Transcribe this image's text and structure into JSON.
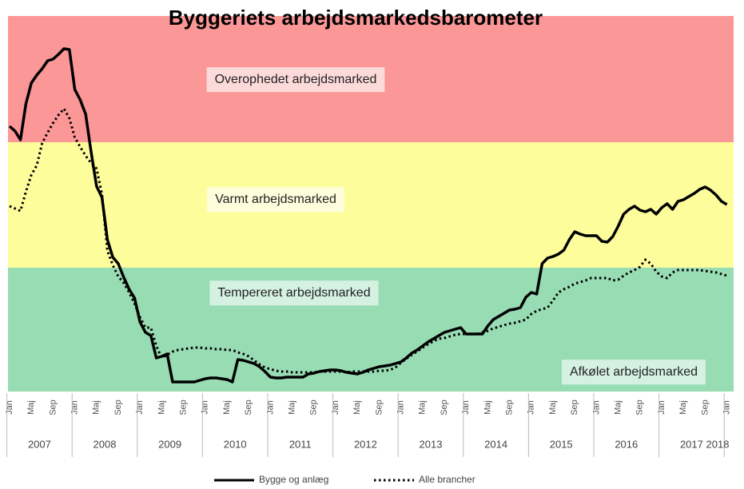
{
  "chart_data": {
    "type": "line",
    "title": "Byggeriets arbejdsmarkedsbarometer",
    "categories": [
      "Jan",
      null,
      null,
      null,
      "Maj",
      null,
      null,
      null,
      "Sep",
      null,
      null,
      null,
      "Jan",
      null,
      null,
      null,
      "Maj",
      null,
      null,
      null,
      "Sep",
      null,
      null,
      null,
      "Jan",
      null,
      null,
      null,
      "Maj",
      null,
      null,
      null,
      "Sep",
      null,
      null,
      null,
      "Jan",
      null,
      null,
      null,
      "Maj",
      null,
      null,
      null,
      "Sep",
      null,
      null,
      null,
      "Jan",
      null,
      null,
      null,
      "Maj",
      null,
      null,
      null,
      "Sep",
      null,
      null,
      null,
      "Jan",
      null,
      null,
      null,
      "Maj",
      null,
      null,
      null,
      "Sep",
      null,
      null,
      null,
      "Jan",
      null,
      null,
      null,
      "Maj",
      null,
      null,
      null,
      "Sep",
      null,
      null,
      null,
      "Jan",
      null,
      null,
      null,
      "Maj",
      null,
      null,
      null,
      "Sep",
      null,
      null,
      null,
      "Jan",
      null,
      null,
      null,
      "Maj",
      null,
      null,
      null,
      "Sep",
      null,
      null,
      null,
      "Jan",
      null,
      null,
      null,
      "Maj",
      null,
      null,
      null,
      "Sep",
      null,
      null,
      null,
      "Jan",
      null,
      null,
      null,
      "Maj",
      null,
      null,
      null,
      "Sep",
      null,
      null,
      null,
      "Jan"
    ],
    "years": [
      "2007",
      "2008",
      "2009",
      "2010",
      "2011",
      "2012",
      "2013",
      "2014",
      "2015",
      "2016",
      "2017",
      "2018"
    ],
    "series": [
      {
        "name": "Bygge og anlæg",
        "color": "#000000",
        "style": "solid",
        "values": [
          332,
          326,
          315,
          360,
          386,
          396,
          404,
          414,
          416,
          422,
          429,
          428,
          378,
          365,
          347,
          300,
          257,
          243,
          190,
          168,
          160,
          143,
          128,
          117,
          87,
          74,
          70,
          42,
          44,
          47,
          12,
          12,
          12,
          12,
          12,
          14,
          16,
          17,
          17,
          16,
          15,
          12,
          40,
          39,
          37,
          35,
          31,
          25,
          18,
          17,
          17,
          18,
          18,
          18,
          18,
          22,
          23,
          25,
          26,
          27,
          27,
          26,
          24,
          23,
          22,
          24,
          27,
          29,
          31,
          32,
          33,
          35,
          37,
          42,
          48,
          52,
          57,
          62,
          66,
          70,
          74,
          76,
          78,
          80,
          72,
          72,
          72,
          72,
          82,
          90,
          94,
          98,
          102,
          103,
          105,
          118,
          124,
          122,
          160,
          167,
          169,
          172,
          177,
          190,
          200,
          197,
          195,
          195,
          195,
          188,
          187,
          194,
          207,
          222,
          228,
          232,
          227,
          225,
          228,
          222,
          230,
          235,
          228,
          238,
          240,
          244,
          248,
          253,
          256,
          252,
          246,
          238,
          234
        ]
      },
      {
        "name": "Alle brancher",
        "color": "#000000",
        "style": "dotted",
        "values": [
          232,
          229,
          226,
          250,
          271,
          283,
          311,
          324,
          336,
          346,
          354,
          342,
          318,
          306,
          295,
          286,
          279,
          247,
          176,
          158,
          144,
          136,
          124,
          110,
          93,
          80,
          80,
          57,
          42,
          46,
          50,
          52,
          53,
          54,
          55,
          55,
          54,
          54,
          53,
          53,
          52,
          52,
          49,
          47,
          44,
          39,
          34,
          30,
          28,
          26,
          25,
          25,
          24,
          24,
          24,
          24,
          24,
          25,
          25,
          25,
          25,
          25,
          24,
          25,
          25,
          25,
          25,
          25,
          26,
          26,
          27,
          30,
          36,
          41,
          46,
          50,
          55,
          59,
          63,
          66,
          67,
          69,
          71,
          72,
          72,
          72,
          72,
          74,
          76,
          79,
          81,
          83,
          85,
          86,
          88,
          90,
          97,
          101,
          103,
          105,
          114,
          124,
          128,
          131,
          135,
          137,
          139,
          142,
          142,
          142,
          142,
          139,
          140,
          145,
          149,
          152,
          156,
          165,
          160,
          150,
          144,
          142,
          149,
          152,
          152,
          152,
          152,
          152,
          151,
          150,
          149,
          147,
          145
        ]
      }
    ],
    "ylim": [
      0,
      470
    ],
    "bands": [
      {
        "from": 0,
        "to": 155,
        "color": "#98dcb4"
      },
      {
        "from": 155,
        "to": 312,
        "color": "#fdfd9c"
      },
      {
        "from": 312,
        "to": 470,
        "color": "#fc9797"
      }
    ],
    "annotations": [
      "Overophedet arbejdsmarked",
      "Varmt arbejdsmarked",
      "Tempereret arbejdsmarked",
      "Afkølet arbejdsmarked"
    ],
    "legend": "bottom"
  }
}
